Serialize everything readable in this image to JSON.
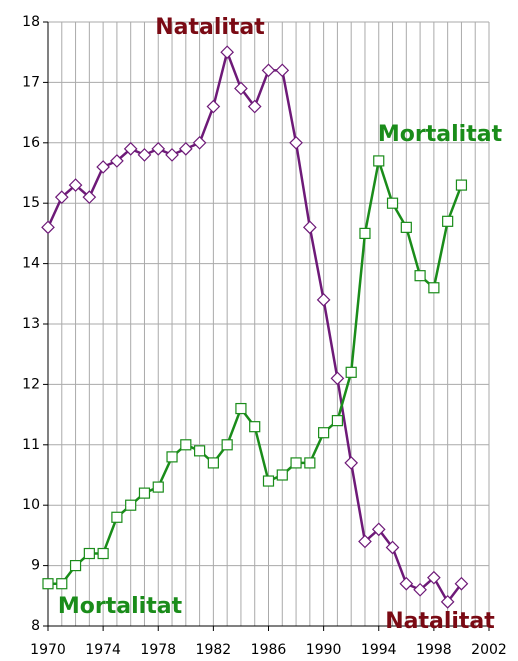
{
  "chart_data": {
    "type": "line",
    "x": [
      1970,
      1971,
      1972,
      1973,
      1974,
      1975,
      1976,
      1977,
      1978,
      1979,
      1980,
      1981,
      1982,
      1983,
      1984,
      1985,
      1986,
      1987,
      1988,
      1989,
      1990,
      1991,
      1992,
      1993,
      1994,
      1995,
      1996,
      1997,
      1998,
      1999,
      2000
    ],
    "series": [
      {
        "name": "Natalitat",
        "color": "#6e1a78",
        "marker": "diamond",
        "values": [
          14.6,
          15.1,
          15.3,
          15.1,
          15.6,
          15.7,
          15.9,
          15.8,
          15.9,
          15.8,
          15.9,
          16.0,
          16.6,
          17.5,
          16.9,
          16.6,
          17.2,
          17.2,
          16.0,
          14.6,
          13.4,
          12.1,
          10.7,
          9.4,
          9.6,
          9.3,
          8.7,
          8.6,
          8.8,
          8.4,
          8.7
        ]
      },
      {
        "name": "Mortalitat",
        "color": "#1a8c1a",
        "marker": "square",
        "values": [
          8.7,
          8.7,
          9.0,
          9.2,
          9.2,
          9.8,
          10.0,
          10.2,
          10.3,
          10.8,
          11.0,
          10.9,
          10.7,
          11.0,
          11.6,
          11.3,
          10.4,
          10.5,
          10.7,
          10.7,
          11.2,
          11.4,
          12.2,
          14.5,
          15.7,
          15.0,
          14.6,
          13.8,
          13.6,
          14.7,
          15.3
        ]
      }
    ],
    "annotations": [
      {
        "text": "Natalitat",
        "color": "#7a0a14"
      },
      {
        "text": "Mortalitat",
        "color": "#1a8c1a"
      },
      {
        "text": "Mortalitat",
        "color": "#1a8c1a"
      },
      {
        "text": "Natalitat",
        "color": "#7a0a14"
      }
    ],
    "xlim": [
      1970,
      2002
    ],
    "xticks": [
      1970,
      1974,
      1978,
      1982,
      1986,
      1990,
      1994,
      1998,
      2002
    ],
    "ylim": [
      8,
      18
    ],
    "yticks": [
      8,
      9,
      10,
      11,
      12,
      13,
      14,
      15,
      16,
      17,
      18
    ],
    "grid": true,
    "minor_grid_step": 1
  }
}
